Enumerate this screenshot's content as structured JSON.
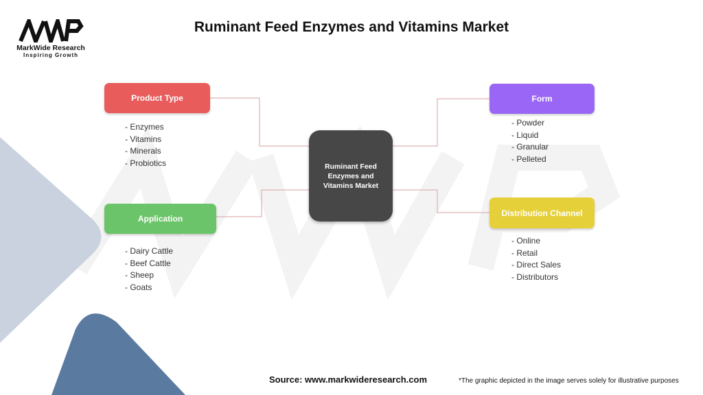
{
  "title": "Ruminant Feed Enzymes and Vitamins Market",
  "logo": {
    "mark": "MWR",
    "name": "MarkWide Research",
    "tagline": "Inspiring Growth"
  },
  "center": "Ruminant Feed Enzymes and Vitamins Market",
  "categories": [
    {
      "label": "Product Type",
      "color": "#e85c5c",
      "items": [
        "- Enzymes",
        "- Vitamins",
        "- Minerals",
        "- Probiotics"
      ]
    },
    {
      "label": "Application",
      "color": "#6cc46a",
      "items": [
        "- Dairy Cattle",
        "- Beef Cattle",
        "- Sheep",
        "- Goats"
      ]
    },
    {
      "label": "Form",
      "color": "#9a66f5",
      "items": [
        "- Powder",
        "- Liquid",
        "- Granular",
        "- Pelleted"
      ]
    },
    {
      "label": "Distribution Channel",
      "color": "#e6d03a",
      "items": [
        "- Online",
        "- Retail",
        "- Direct Sales",
        "- Distributors"
      ]
    }
  ],
  "connector_color": "#d9a0a0",
  "source": "Source: www.markwideresearch.com",
  "note": "*The graphic depicted in the image serves solely for illustrative purposes"
}
